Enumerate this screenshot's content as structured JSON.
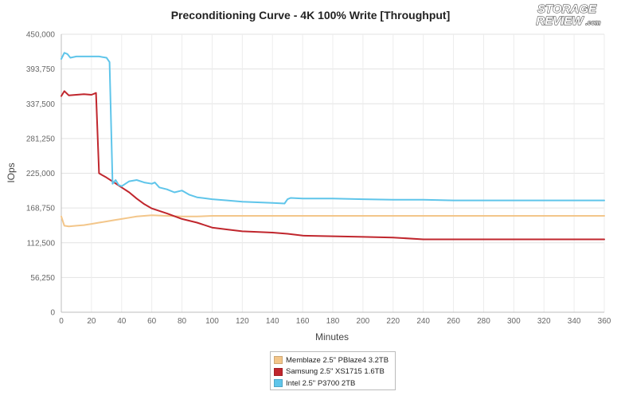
{
  "logo": {
    "line1": "STORAGE",
    "line2": "REVIEW",
    "suffix": ".com"
  },
  "chart_data": {
    "type": "line",
    "title": "Preconditioning Curve - 4K 100% Write [Throughput]",
    "xlabel": "Minutes",
    "ylabel": "IOps",
    "xlim": [
      0,
      360
    ],
    "ylim": [
      0,
      450000
    ],
    "x_ticks": [
      "0",
      "20",
      "40",
      "60",
      "80",
      "100",
      "120",
      "140",
      "160",
      "180",
      "200",
      "220",
      "240",
      "260",
      "280",
      "300",
      "320",
      "340",
      "360"
    ],
    "y_ticks": [
      "0",
      "56,250",
      "112,500",
      "168,750",
      "225,000",
      "281,250",
      "337,500",
      "393,750",
      "450,000"
    ],
    "grid": true,
    "legend_position": "bottom-center",
    "series": [
      {
        "name": "Memblaze 2.5\" PBlaze4 3.2TB",
        "color": "#f3c68a",
        "x": [
          0,
          2,
          5,
          10,
          15,
          20,
          25,
          30,
          35,
          40,
          45,
          50,
          55,
          60,
          70,
          80,
          90,
          100,
          120,
          140,
          160,
          180,
          200,
          220,
          240,
          260,
          280,
          300,
          320,
          340,
          360
        ],
        "y": [
          155000,
          140000,
          139000,
          140000,
          141000,
          143000,
          145000,
          147000,
          149000,
          151000,
          153000,
          155000,
          156000,
          157000,
          156000,
          155000,
          155000,
          156000,
          156000,
          156000,
          156000,
          156000,
          156000,
          156000,
          156000,
          156000,
          156000,
          156000,
          156000,
          156000,
          156000
        ]
      },
      {
        "name": "Samsung 2.5\" XS1715 1.6TB",
        "color": "#c0262d",
        "x": [
          0,
          2,
          5,
          10,
          15,
          20,
          23,
          25,
          27,
          30,
          35,
          40,
          45,
          50,
          55,
          60,
          70,
          80,
          90,
          100,
          110,
          120,
          140,
          150,
          160,
          180,
          200,
          220,
          240,
          260,
          280,
          300,
          320,
          340,
          360
        ],
        "y": [
          350000,
          358000,
          351000,
          352000,
          353000,
          352000,
          355000,
          225000,
          222000,
          218000,
          210000,
          202000,
          194000,
          184000,
          175000,
          168000,
          160000,
          151000,
          145000,
          137000,
          134000,
          131000,
          129000,
          127000,
          124000,
          123000,
          122000,
          121000,
          118000,
          118000,
          118000,
          118000,
          118000,
          118000,
          118000
        ]
      },
      {
        "name": "Intel 2.5\" P3700 2TB",
        "color": "#5fc5ea",
        "x": [
          0,
          2,
          4,
          6,
          10,
          15,
          20,
          25,
          30,
          32,
          34,
          36,
          38,
          40,
          45,
          50,
          55,
          60,
          62,
          65,
          70,
          75,
          80,
          85,
          90,
          100,
          110,
          120,
          130,
          140,
          148,
          150,
          152,
          160,
          180,
          200,
          220,
          240,
          260,
          280,
          300,
          320,
          340,
          360
        ],
        "y": [
          410000,
          420000,
          418000,
          412000,
          414000,
          414000,
          414000,
          414000,
          412000,
          405000,
          208000,
          214000,
          206000,
          204000,
          212000,
          214000,
          210000,
          208000,
          210000,
          202000,
          199000,
          194000,
          197000,
          190000,
          186000,
          183000,
          181000,
          179000,
          178000,
          177000,
          176000,
          183000,
          185000,
          184000,
          184000,
          183000,
          182000,
          182000,
          181000,
          181000,
          181000,
          181000,
          181000,
          181000
        ]
      }
    ]
  }
}
